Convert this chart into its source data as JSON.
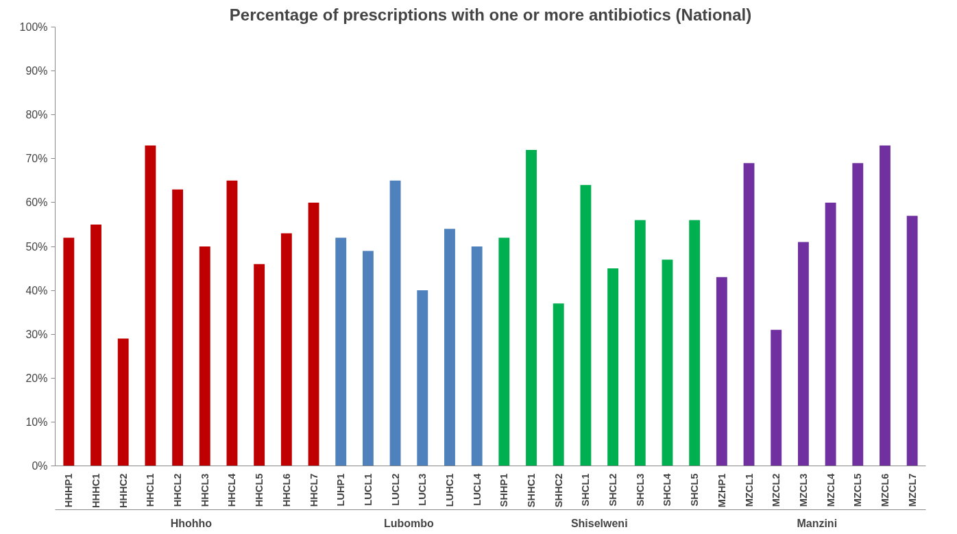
{
  "chart_data": {
    "type": "bar",
    "title": "Percentage of prescriptions with one or more antibiotics (National)",
    "categories": [
      "HHHP1",
      "HHHC1",
      "HHHC2",
      "HHCL1",
      "HHCL2",
      "HHCL3",
      "HHCL4",
      "HHCL5",
      "HHCL6",
      "HHCL7",
      "LUHP1",
      "LUCL1",
      "LUCL2",
      "LUCL3",
      "LUHC1",
      "LUCL4",
      "SHHP1",
      "SHHC1",
      "SHHC2",
      "SHCL1",
      "SHCL2",
      "SHCL3",
      "SHCL4",
      "SHCL5",
      "MZHP1",
      "MZCL1",
      "MZCL2",
      "MZCL3",
      "MZCL4",
      "MZCL5",
      "MZCL6",
      "MZCL7"
    ],
    "values": [
      52,
      55,
      29,
      73,
      63,
      50,
      65,
      46,
      53,
      60,
      52,
      49,
      65,
      40,
      54,
      50,
      52,
      72,
      37,
      64,
      45,
      56,
      47,
      56,
      43,
      69,
      31,
      51,
      60,
      69,
      73,
      57
    ],
    "colors": [
      "#c00000",
      "#c00000",
      "#c00000",
      "#c00000",
      "#c00000",
      "#c00000",
      "#c00000",
      "#c00000",
      "#c00000",
      "#c00000",
      "#4f81bd",
      "#4f81bd",
      "#4f81bd",
      "#4f81bd",
      "#4f81bd",
      "#4f81bd",
      "#00b050",
      "#00b050",
      "#00b050",
      "#00b050",
      "#00b050",
      "#00b050",
      "#00b050",
      "#00b050",
      "#7030a0",
      "#7030a0",
      "#7030a0",
      "#7030a0",
      "#7030a0",
      "#7030a0",
      "#7030a0",
      "#7030a0"
    ],
    "annotations": [
      "Hhohho",
      "Lubombo",
      "Shiselweni",
      "Manzini"
    ],
    "ylim": [
      0,
      100
    ],
    "yticks": [
      {
        "value": 0,
        "label": "0%"
      },
      {
        "value": 10,
        "label": "10%"
      },
      {
        "value": 20,
        "label": "20%"
      },
      {
        "value": 30,
        "label": "30%"
      },
      {
        "value": 40,
        "label": "40%"
      },
      {
        "value": 50,
        "label": "50%"
      },
      {
        "value": 60,
        "label": "60%"
      },
      {
        "value": 70,
        "label": "70%"
      },
      {
        "value": 80,
        "label": "80%"
      },
      {
        "value": 90,
        "label": "90%"
      },
      {
        "value": 100,
        "label": "100%"
      }
    ],
    "grid": false
  }
}
